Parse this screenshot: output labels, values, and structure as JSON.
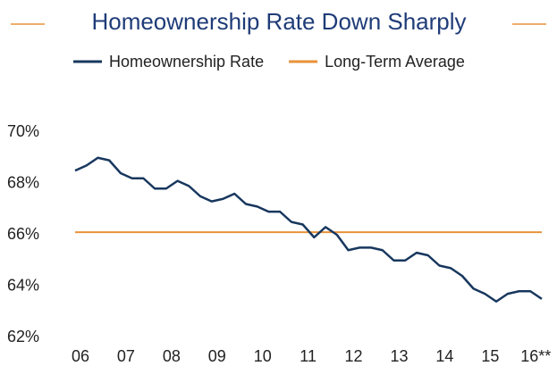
{
  "chart_data": {
    "type": "line",
    "title": "Homeownership Rate Down Sharply",
    "categories": [
      "06",
      null,
      null,
      null,
      "07",
      null,
      null,
      null,
      "08",
      null,
      null,
      null,
      "09",
      null,
      null,
      null,
      "10",
      null,
      null,
      null,
      "11",
      null,
      null,
      null,
      "12",
      null,
      null,
      null,
      "13",
      null,
      null,
      null,
      "14",
      null,
      null,
      null,
      "15",
      null,
      null,
      null,
      "16**",
      null
    ],
    "series": [
      {
        "name": "Homeownership Rate",
        "color": "#17375e",
        "values": [
          68.5,
          68.7,
          69.0,
          68.9,
          68.4,
          68.2,
          68.2,
          67.8,
          67.8,
          68.1,
          67.9,
          67.5,
          67.3,
          67.4,
          67.6,
          67.2,
          67.1,
          66.9,
          66.9,
          66.5,
          66.4,
          65.9,
          66.3,
          66.0,
          65.4,
          65.5,
          65.5,
          65.4,
          65.0,
          65.0,
          65.3,
          65.2,
          64.8,
          64.7,
          64.4,
          63.9,
          63.7,
          63.4,
          63.7,
          63.8,
          63.8,
          63.5
        ]
      },
      {
        "name": "Long-Term Average",
        "color": "#e8923a",
        "values": [
          66.1,
          66.1,
          66.1,
          66.1,
          66.1,
          66.1,
          66.1,
          66.1,
          66.1,
          66.1,
          66.1,
          66.1,
          66.1,
          66.1,
          66.1,
          66.1,
          66.1,
          66.1,
          66.1,
          66.1,
          66.1,
          66.1,
          66.1,
          66.1,
          66.1,
          66.1,
          66.1,
          66.1,
          66.1,
          66.1,
          66.1,
          66.1,
          66.1,
          66.1,
          66.1,
          66.1,
          66.1,
          66.1,
          66.1,
          66.1,
          66.1,
          66.1
        ]
      }
    ],
    "ylim": [
      62,
      70
    ],
    "yticks": [
      {
        "value": 62,
        "label": "62%"
      },
      {
        "value": 64,
        "label": "64%"
      },
      {
        "value": 66,
        "label": "66%"
      },
      {
        "value": 68,
        "label": "68%"
      },
      {
        "value": 70,
        "label": "70%"
      }
    ],
    "grid": false
  }
}
